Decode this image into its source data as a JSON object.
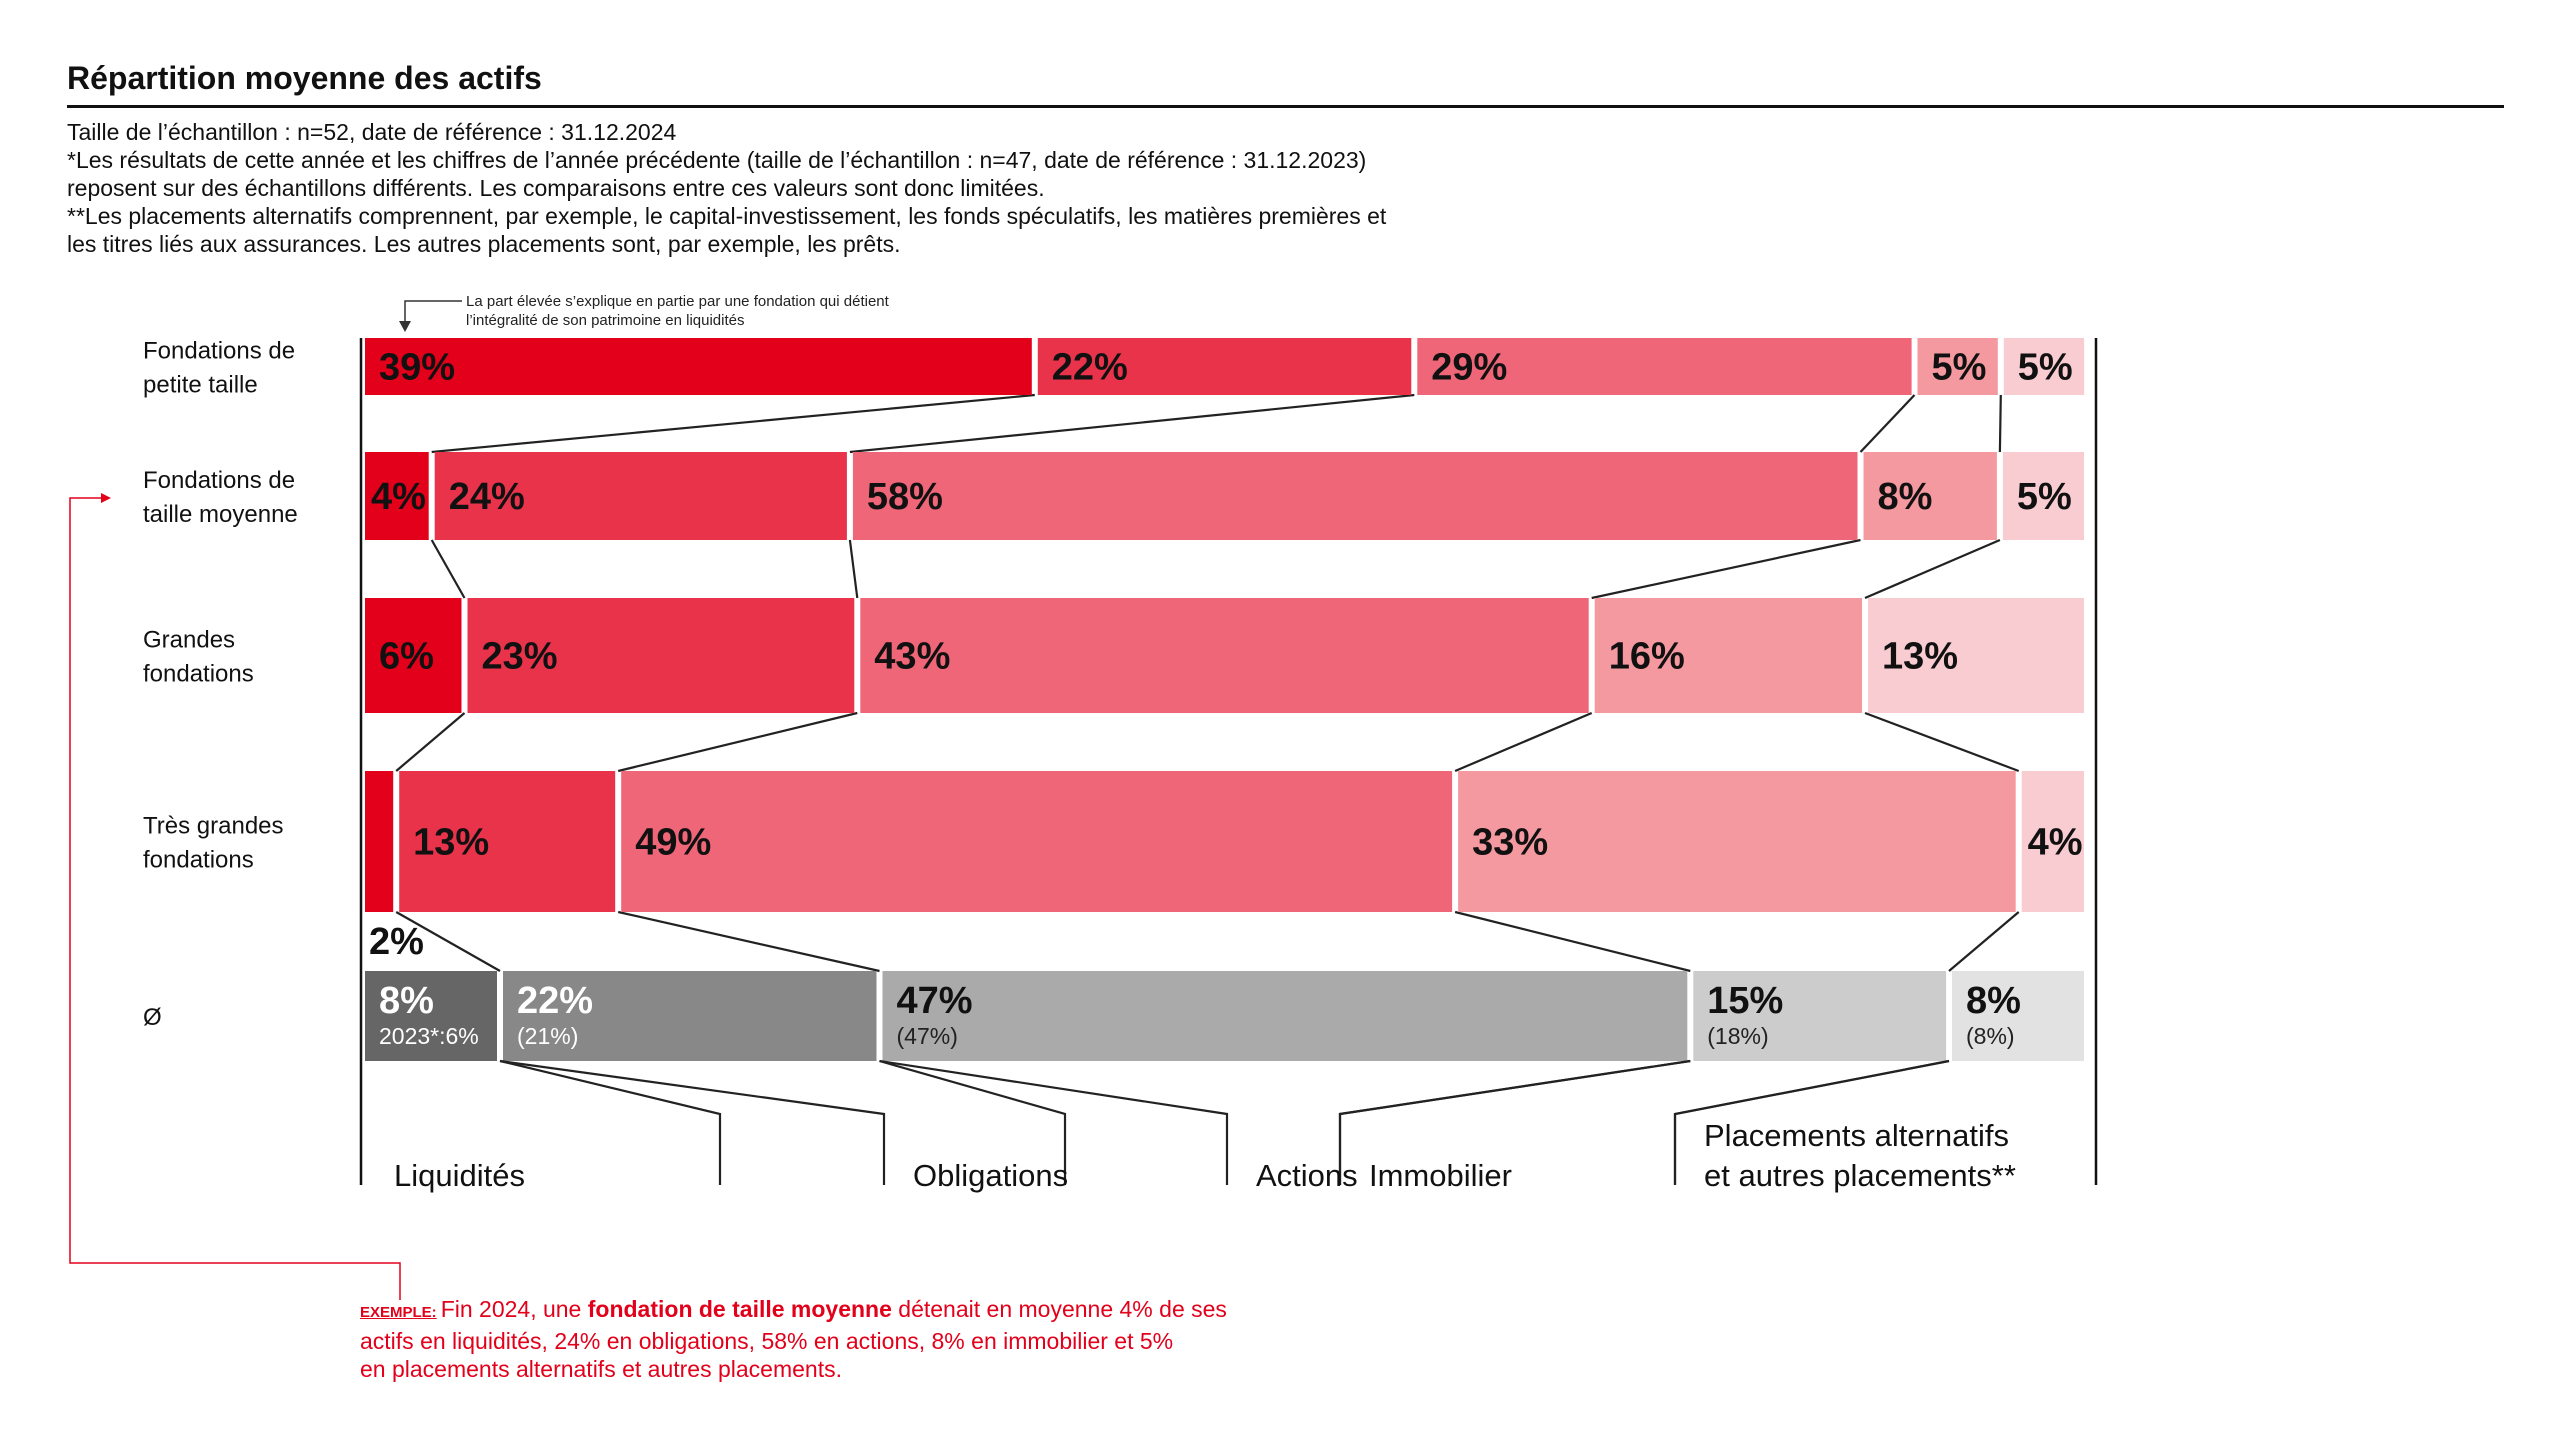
{
  "title": "Répartition moyenne des actifs",
  "notes": [
    "Taille de l’échantillon : n=52, date de référence : 31.12.2024",
    "*Les résultats de cette année et les chiffres de l’année précédente (taille de l’échantillon : n=47, date de référence : 31.12.2023)",
    "reposent sur des échantillons différents. Les comparaisons entre ces valeurs sont donc limitées.",
    "**Les placements alternatifs comprennent, par exemple, le capital-investissement, les fonds spéculatifs, les matières premières et",
    "les titres liés aux assurances. Les autres placements sont, par exemple, les prêts."
  ],
  "annotation": [
    "La part élevée s’explique en partie par une fondation qui détient",
    "l’intégralité de son patrimoine en liquidités"
  ],
  "example": {
    "tag": "EXEMPLE:",
    "line1_pre": "Fin 2024, une ",
    "line1_bold": "fondation de taille moyenne",
    "line1_post": " détenait en moyenne 4% de ses",
    "line2": "actifs en liquidités, 24% en obligations, 58% en actions, 8% en immobilier et 5%",
    "line3": "en placements alternatifs et autres placements."
  },
  "colors": {
    "categories": [
      "#e2001a",
      "#e8334a",
      "#ee6677",
      "#f4999f",
      "#f9ccd1"
    ],
    "average": [
      "#666666",
      "#888888",
      "#aaaaaa",
      "#cccccc",
      "#e2e2e2"
    ],
    "accent": "#e2001a"
  },
  "chart_data": {
    "type": "bar",
    "orientation": "horizontal",
    "stacked": "100%",
    "categories": [
      "Liquidités",
      "Obligations",
      "Actions",
      "Immobilier",
      "Placements alternatifs et autres placements**"
    ],
    "category_label_lines": [
      [
        "Liquidités"
      ],
      [
        "Obligations"
      ],
      [
        "Actions"
      ],
      [
        "Immobilier"
      ],
      [
        "Placements alternatifs",
        "et autres placements**"
      ]
    ],
    "rows": [
      {
        "name": "Fondations de petite taille",
        "label_lines": [
          "Fondations de",
          "petite taille"
        ],
        "values": [
          39,
          22,
          29,
          5,
          5
        ],
        "labels": [
          "39%",
          "22%",
          "29%",
          "5%",
          "5%"
        ]
      },
      {
        "name": "Fondations de taille moyenne",
        "label_lines": [
          "Fondations de",
          "taille moyenne"
        ],
        "values": [
          4,
          24,
          58,
          8,
          5
        ],
        "labels": [
          "4%",
          "24%",
          "58%",
          "8%",
          "5%"
        ]
      },
      {
        "name": "Grandes fondations",
        "label_lines": [
          "Grandes",
          "fondations"
        ],
        "values": [
          6,
          23,
          43,
          16,
          13
        ],
        "labels": [
          "6%",
          "23%",
          "43%",
          "16%",
          "13%"
        ]
      },
      {
        "name": "Très grandes fondations",
        "label_lines": [
          "Très grandes",
          "fondations"
        ],
        "values": [
          2,
          13,
          49,
          33,
          4
        ],
        "labels": [
          "2%",
          "13%",
          "49%",
          "33%",
          "4%"
        ]
      },
      {
        "name": "Ø",
        "label_lines": [
          "Ø"
        ],
        "average": true,
        "values": [
          8,
          22,
          47,
          15,
          8
        ],
        "labels": [
          "8%",
          "22%",
          "47%",
          "15%",
          "8%"
        ],
        "previous_year": [
          6,
          21,
          47,
          18,
          8
        ],
        "previous_labels": [
          "2023*:6%",
          "(21%)",
          "(47%)",
          "(18%)",
          "(8%)"
        ]
      }
    ]
  }
}
